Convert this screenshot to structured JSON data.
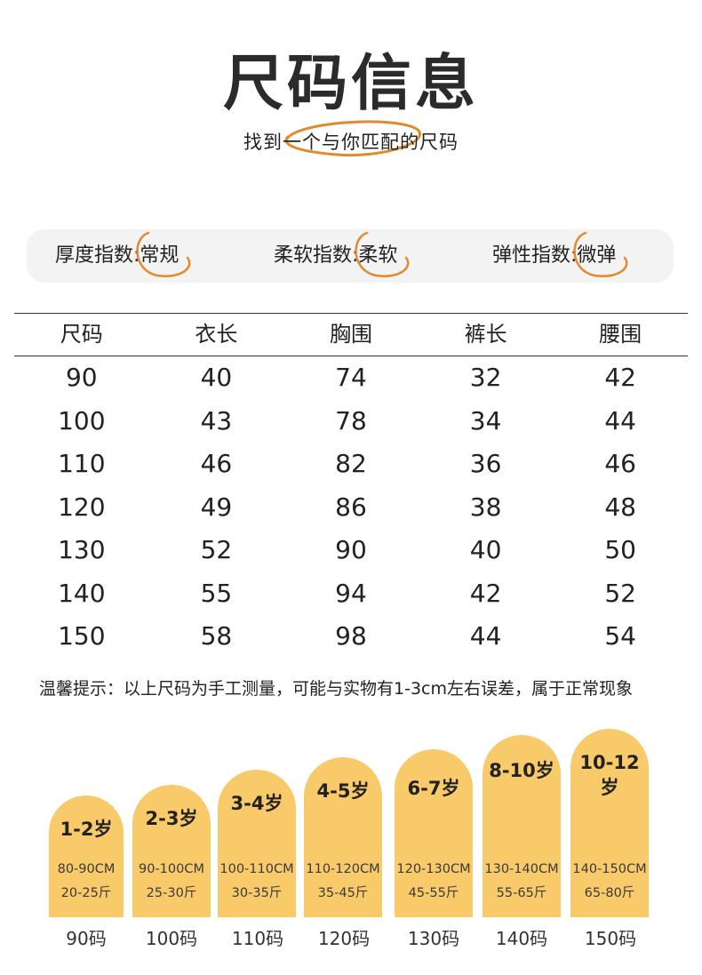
{
  "title": "尺码信息",
  "subtitle": "找到一个与你匹配的尺码",
  "indices": [
    {
      "label": "厚度指数:",
      "value": "常规"
    },
    {
      "label": "柔软指数:",
      "value": "柔软"
    },
    {
      "label": "弹性指数:",
      "value": "微弹"
    }
  ],
  "table": {
    "headers": [
      "尺码",
      "衣长",
      "胸围",
      "裤长",
      "腰围"
    ],
    "rows": [
      [
        "90",
        "40",
        "74",
        "32",
        "42"
      ],
      [
        "100",
        "43",
        "78",
        "34",
        "44"
      ],
      [
        "110",
        "46",
        "82",
        "36",
        "46"
      ],
      [
        "120",
        "49",
        "86",
        "38",
        "48"
      ],
      [
        "130",
        "52",
        "90",
        "40",
        "50"
      ],
      [
        "140",
        "55",
        "94",
        "42",
        "52"
      ],
      [
        "150",
        "58",
        "98",
        "44",
        "54"
      ]
    ]
  },
  "tip": "温馨提示：以上尺码为手工测量，可能与实物有1-3cm左右误差，属于正常现象",
  "size_guide": [
    {
      "age": "1-2岁",
      "height": "80-90CM",
      "weight": "20-25斤",
      "size": "90码"
    },
    {
      "age": "2-3岁",
      "height": "90-100CM",
      "weight": "25-30斤",
      "size": "100码"
    },
    {
      "age": "3-4岁",
      "height": "100-110CM",
      "weight": "30-35斤",
      "size": "110码"
    },
    {
      "age": "4-5岁",
      "height": "110-120CM",
      "weight": "35-45斤",
      "size": "120码"
    },
    {
      "age": "6-7岁",
      "height": "120-130CM",
      "weight": "45-55斤",
      "size": "130码"
    },
    {
      "age": "8-10岁",
      "height": "130-140CM",
      "weight": "55-65斤",
      "size": "140码"
    },
    {
      "age": "10-12岁",
      "height": "140-150CM",
      "weight": "65-80斤",
      "size": "150码"
    }
  ],
  "colors": {
    "accent": "#e08a2c",
    "arch": "#f9ca6a",
    "bar": "#f3f3f3"
  }
}
